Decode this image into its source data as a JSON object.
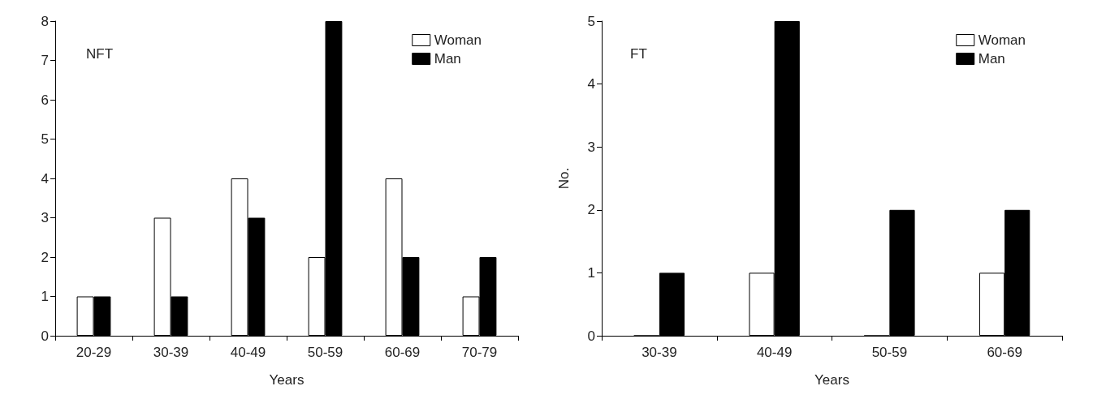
{
  "chart_data": [
    {
      "type": "bar",
      "categories": [
        "20-29",
        "30-39",
        "40-49",
        "50-59",
        "60-69",
        "70-79"
      ],
      "xlabel": "Years",
      "annotations": [
        "NFT"
      ],
      "ylim": [
        0,
        8
      ],
      "yticks": [
        0,
        1,
        2,
        3,
        4,
        5,
        6,
        7,
        8
      ],
      "grid": false,
      "legend": "top right",
      "series": [
        {
          "name": "Woman",
          "color": "#ffffff",
          "values": [
            1,
            3,
            4,
            2,
            4,
            1
          ]
        },
        {
          "name": "Man",
          "color": "#000000",
          "values": [
            1,
            1,
            3,
            8,
            2,
            2
          ]
        }
      ]
    },
    {
      "type": "bar",
      "categories": [
        "30-39",
        "40-49",
        "50-59",
        "60-69"
      ],
      "xlabel": "Years",
      "ylabel": "No.",
      "annotations": [
        "FT"
      ],
      "ylim": [
        0,
        5
      ],
      "yticks": [
        0,
        1,
        2,
        3,
        4,
        5
      ],
      "grid": false,
      "legend": "top right",
      "series": [
        {
          "name": "Woman",
          "color": "#ffffff",
          "values": [
            0,
            1,
            0,
            1
          ]
        },
        {
          "name": "Man",
          "color": "#000000",
          "values": [
            1,
            5,
            2,
            2
          ]
        }
      ]
    }
  ]
}
